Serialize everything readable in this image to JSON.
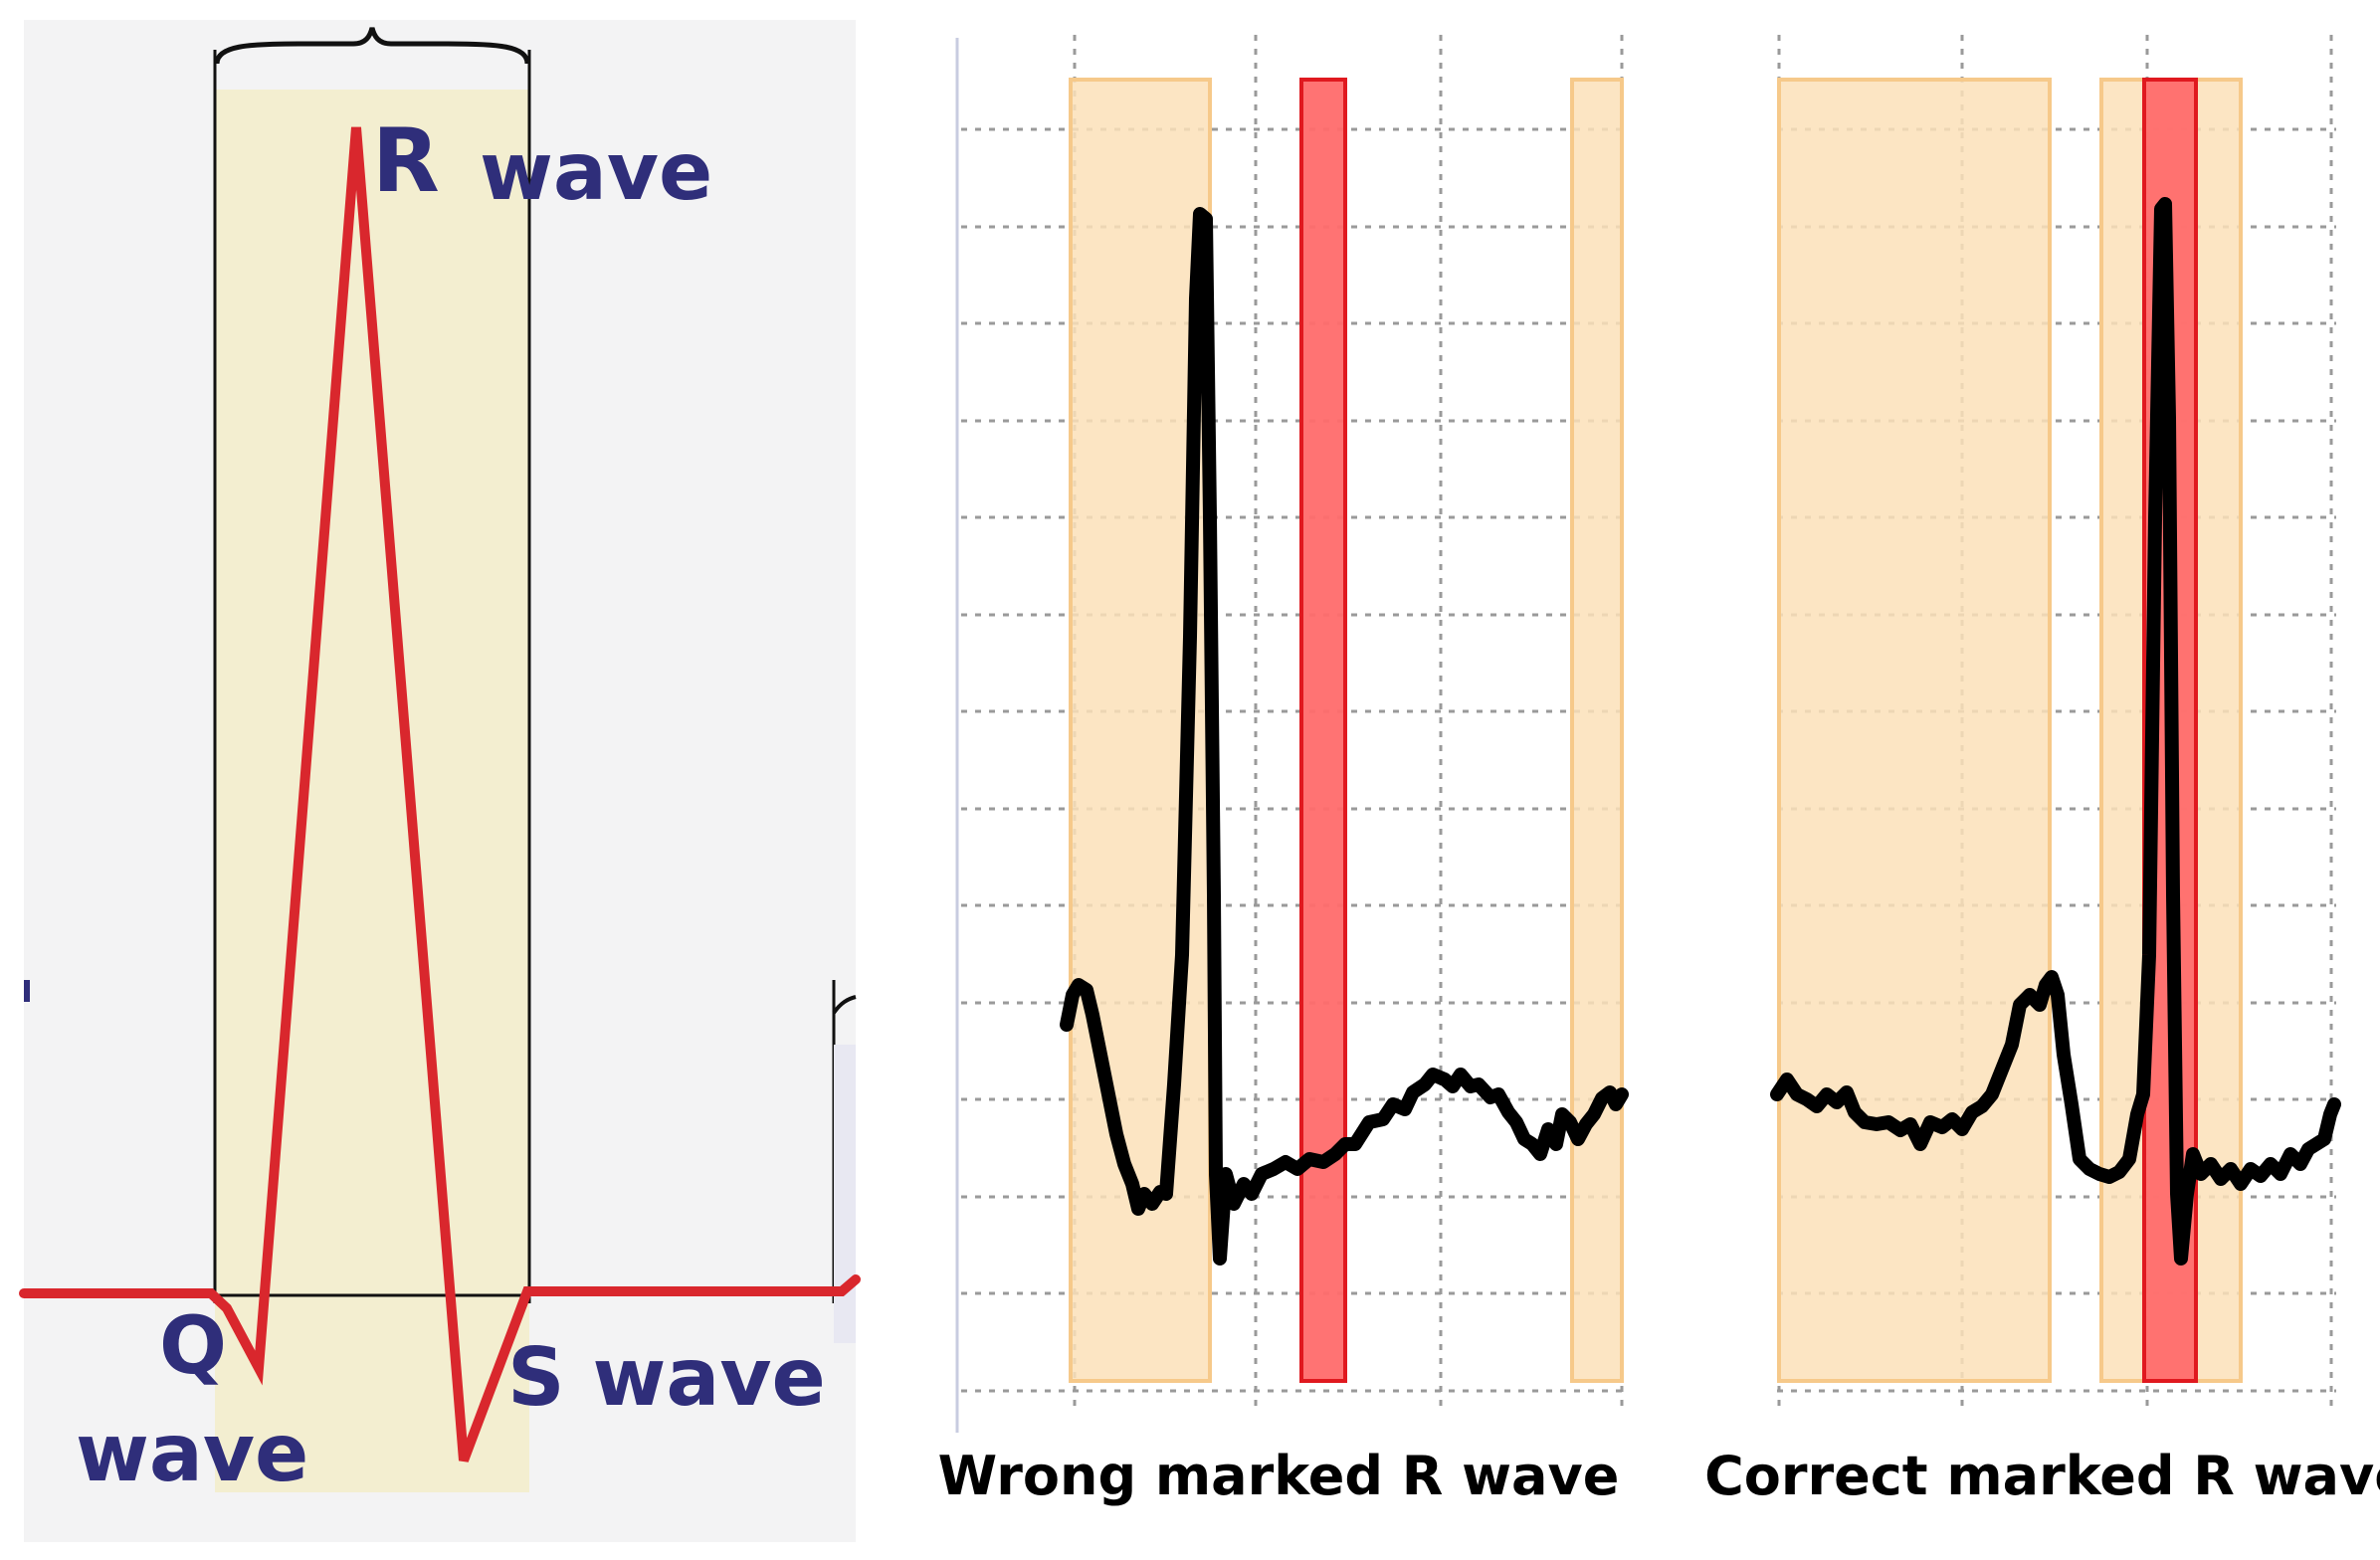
{
  "qrs_diagram": {
    "labels": {
      "r": "R",
      "r_wave": "wave",
      "q": "Q",
      "q_wave": "wave",
      "s_wave": "S wave"
    },
    "colors": {
      "background": "#f3f3f4",
      "qrs_region": "#f3eed0",
      "trace": "#d9272d",
      "label": "#2f2e7a"
    }
  },
  "panels": [
    {
      "caption": "Wrong marked R wave",
      "verdict": "wrong"
    },
    {
      "caption": "Correct marked R wave",
      "verdict": "correct"
    }
  ],
  "colors": {
    "beat_window": "#fbe1b8",
    "beat_window_border": "#f6c98a",
    "r_marker_fill": "#ff6b6b",
    "r_marker_border": "#e0191f",
    "ecg_trace": "#000000",
    "grid": "#9a9a9a"
  }
}
